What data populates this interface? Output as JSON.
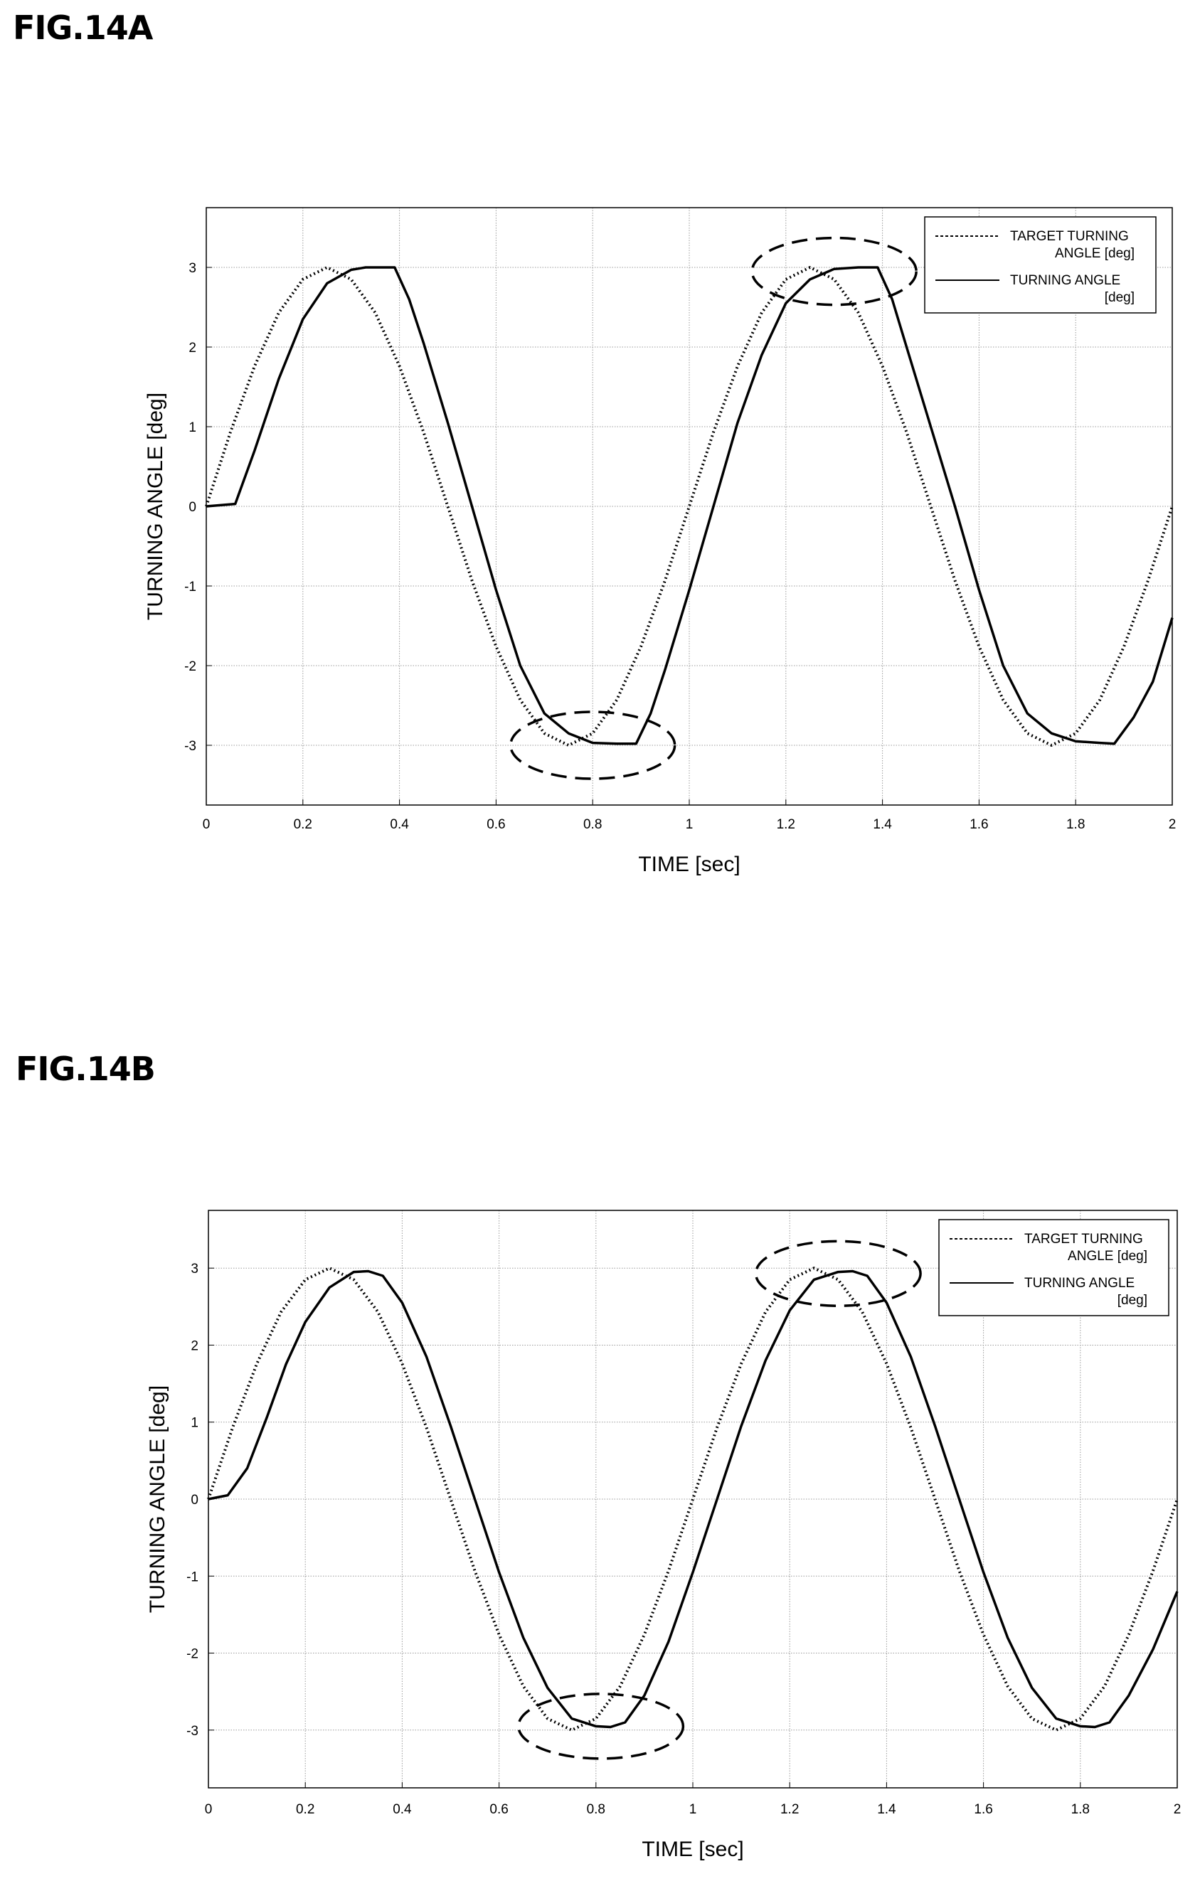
{
  "figures": [
    {
      "label": "FIG.14A"
    },
    {
      "label": "FIG.14B"
    }
  ],
  "chart_data": [
    {
      "type": "line",
      "xlabel": "TIME [sec]",
      "ylabel": "TURNING ANGLE [deg]",
      "xlim": [
        0,
        2
      ],
      "ylim": [
        -3.75,
        3.75
      ],
      "xticks": [
        "0",
        "0.2",
        "0.4",
        "0.6",
        "0.8",
        "1",
        "1.2",
        "1.4",
        "1.6",
        "1.8",
        "2"
      ],
      "yticks": [
        "-3",
        "-2",
        "-1",
        "0",
        "1",
        "2",
        "3"
      ],
      "grid": true,
      "legend_position": "top-right",
      "series": [
        {
          "name": "TARGET TURNING ANGLE [deg]",
          "legend_lines": [
            "TARGET TURNING",
            "ANGLE [deg]"
          ],
          "style": "dotted",
          "x": [
            0,
            0.05,
            0.1,
            0.15,
            0.2,
            0.25,
            0.3,
            0.35,
            0.4,
            0.45,
            0.5,
            0.55,
            0.6,
            0.65,
            0.7,
            0.75,
            0.8,
            0.85,
            0.9,
            0.95,
            1.0,
            1.05,
            1.1,
            1.15,
            1.2,
            1.25,
            1.3,
            1.35,
            1.4,
            1.45,
            1.5,
            1.55,
            1.6,
            1.65,
            1.7,
            1.75,
            1.8,
            1.85,
            1.9,
            1.95,
            2.0
          ],
          "y": [
            0,
            0.93,
            1.76,
            2.43,
            2.85,
            3.0,
            2.85,
            2.43,
            1.76,
            0.93,
            0,
            -0.93,
            -1.76,
            -2.43,
            -2.85,
            -3.0,
            -2.85,
            -2.43,
            -1.76,
            -0.93,
            0,
            0.93,
            1.76,
            2.43,
            2.85,
            3.0,
            2.85,
            2.43,
            1.76,
            0.93,
            0,
            -0.93,
            -1.76,
            -2.43,
            -2.85,
            -3.0,
            -2.85,
            -2.43,
            -1.76,
            -0.93,
            0
          ]
        },
        {
          "name": "TURNING ANGLE [deg]",
          "legend_lines": [
            "TURNING ANGLE",
            "[deg]"
          ],
          "style": "solid",
          "x": [
            0,
            0.06,
            0.1,
            0.15,
            0.2,
            0.25,
            0.3,
            0.33,
            0.35,
            0.39,
            0.42,
            0.45,
            0.5,
            0.55,
            0.6,
            0.65,
            0.7,
            0.75,
            0.8,
            0.85,
            0.89,
            0.92,
            0.95,
            1.0,
            1.05,
            1.1,
            1.15,
            1.2,
            1.25,
            1.3,
            1.35,
            1.39,
            1.42,
            1.45,
            1.5,
            1.55,
            1.6,
            1.65,
            1.7,
            1.75,
            1.8,
            1.85,
            1.88,
            1.92,
            1.96,
            2.0
          ],
          "y": [
            0,
            0.03,
            0.7,
            1.6,
            2.35,
            2.8,
            2.97,
            3.0,
            3.0,
            3.0,
            2.6,
            2.05,
            1.05,
            0,
            -1.05,
            -2.0,
            -2.6,
            -2.85,
            -2.97,
            -2.98,
            -2.98,
            -2.6,
            -2.05,
            -1.05,
            0,
            1.05,
            1.9,
            2.55,
            2.85,
            2.98,
            3.0,
            3.0,
            2.6,
            2.0,
            1.0,
            0,
            -1.05,
            -2.0,
            -2.6,
            -2.85,
            -2.95,
            -2.97,
            -2.98,
            -2.65,
            -2.2,
            -1.4
          ]
        }
      ],
      "annotations": [
        {
          "type": "dashed-ellipse",
          "cx": 0.8,
          "cy": -3.0,
          "rx": 0.17,
          "ry": 0.42
        },
        {
          "type": "dashed-ellipse",
          "cx": 1.3,
          "cy": 2.95,
          "rx": 0.17,
          "ry": 0.42
        }
      ]
    },
    {
      "type": "line",
      "xlabel": "TIME [sec]",
      "ylabel": "TURNING ANGLE [deg]",
      "xlim": [
        0,
        2
      ],
      "ylim": [
        -3.75,
        3.75
      ],
      "xticks": [
        "0",
        "0.2",
        "0.4",
        "0.6",
        "0.8",
        "1",
        "1.2",
        "1.4",
        "1.6",
        "1.8",
        "2"
      ],
      "yticks": [
        "-3",
        "-2",
        "-1",
        "0",
        "1",
        "2",
        "3"
      ],
      "grid": true,
      "legend_position": "top-right",
      "series": [
        {
          "name": "TARGET TURNING ANGLE [deg]",
          "legend_lines": [
            "TARGET TURNING",
            "ANGLE [deg]"
          ],
          "style": "dotted",
          "x": [
            0,
            0.05,
            0.1,
            0.15,
            0.2,
            0.25,
            0.3,
            0.35,
            0.4,
            0.45,
            0.5,
            0.55,
            0.6,
            0.65,
            0.7,
            0.75,
            0.8,
            0.85,
            0.9,
            0.95,
            1.0,
            1.05,
            1.1,
            1.15,
            1.2,
            1.25,
            1.3,
            1.35,
            1.4,
            1.45,
            1.5,
            1.55,
            1.6,
            1.65,
            1.7,
            1.75,
            1.8,
            1.85,
            1.9,
            1.95,
            2.0
          ],
          "y": [
            0,
            0.93,
            1.76,
            2.43,
            2.85,
            3.0,
            2.85,
            2.43,
            1.76,
            0.93,
            0,
            -0.93,
            -1.76,
            -2.43,
            -2.85,
            -3.0,
            -2.85,
            -2.43,
            -1.76,
            -0.93,
            0,
            0.93,
            1.76,
            2.43,
            2.85,
            3.0,
            2.85,
            2.43,
            1.76,
            0.93,
            0,
            -0.93,
            -1.76,
            -2.43,
            -2.85,
            -3.0,
            -2.85,
            -2.43,
            -1.76,
            -0.93,
            0
          ]
        },
        {
          "name": "TURNING ANGLE [deg]",
          "legend_lines": [
            "TURNING ANGLE",
            "[deg]"
          ],
          "style": "solid",
          "x": [
            0,
            0.04,
            0.08,
            0.12,
            0.16,
            0.2,
            0.25,
            0.3,
            0.33,
            0.36,
            0.4,
            0.45,
            0.5,
            0.55,
            0.6,
            0.65,
            0.7,
            0.75,
            0.8,
            0.83,
            0.86,
            0.9,
            0.95,
            1.0,
            1.05,
            1.1,
            1.15,
            1.2,
            1.25,
            1.3,
            1.33,
            1.36,
            1.4,
            1.45,
            1.5,
            1.55,
            1.6,
            1.65,
            1.7,
            1.75,
            1.8,
            1.83,
            1.86,
            1.9,
            1.95,
            2.0
          ],
          "y": [
            0,
            0.05,
            0.4,
            1.05,
            1.75,
            2.3,
            2.75,
            2.95,
            2.96,
            2.9,
            2.55,
            1.85,
            0.95,
            0,
            -0.95,
            -1.8,
            -2.45,
            -2.85,
            -2.95,
            -2.96,
            -2.9,
            -2.55,
            -1.85,
            -0.95,
            0,
            0.95,
            1.8,
            2.45,
            2.85,
            2.95,
            2.96,
            2.9,
            2.55,
            1.85,
            0.95,
            0,
            -0.95,
            -1.8,
            -2.45,
            -2.85,
            -2.95,
            -2.96,
            -2.9,
            -2.55,
            -1.95,
            -1.2
          ]
        }
      ],
      "annotations": [
        {
          "type": "dashed-ellipse",
          "cx": 0.81,
          "cy": -2.95,
          "rx": 0.17,
          "ry": 0.42
        },
        {
          "type": "dashed-ellipse",
          "cx": 1.3,
          "cy": 2.93,
          "rx": 0.17,
          "ry": 0.42
        }
      ]
    }
  ]
}
